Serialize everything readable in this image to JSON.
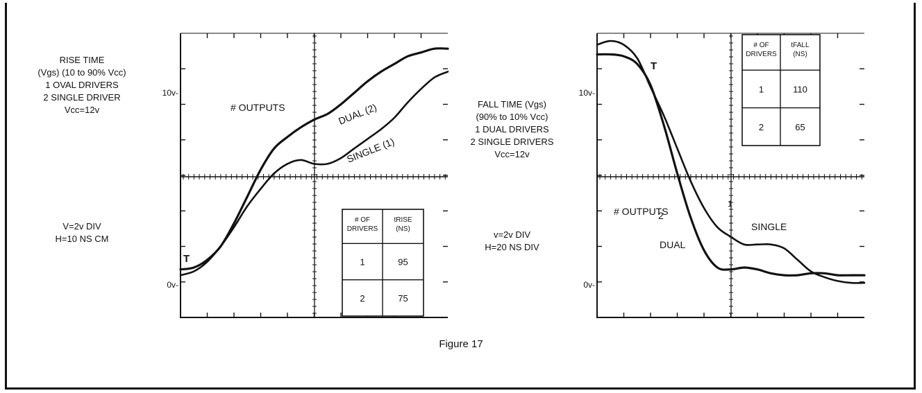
{
  "figure": {
    "caption": "Figure 17"
  },
  "chart_data": [
    {
      "type": "line",
      "title_lines": [
        "RISE TIME",
        "(Vgs) (10 to 90% Vcc)",
        "1  OVAL DRIVERS",
        "2  SINGLE DRIVER",
        "Vcc=12v"
      ],
      "scale_lines": [
        "V=2v DIV",
        "H=10 NS CM"
      ],
      "y_ticks": [
        {
          "label": "10v-",
          "value": 10
        },
        {
          "label": "0v-",
          "value": 0
        }
      ],
      "ylim": [
        -1.7,
        13.1
      ],
      "xlim": [
        0,
        100
      ],
      "inner_label": "# OUTPUTS",
      "start_marker": "T",
      "series": [
        {
          "name": "DUAL (2)",
          "label": "DUAL (2)",
          "x": [
            0,
            5,
            10,
            15,
            20,
            25,
            30,
            35,
            40,
            45,
            50,
            55,
            60,
            65,
            70,
            75,
            80,
            85,
            90,
            95,
            100
          ],
          "y": [
            0.8,
            0.9,
            1.3,
            2.0,
            3.2,
            4.6,
            6.0,
            7.1,
            7.7,
            8.2,
            8.6,
            8.9,
            9.4,
            10.0,
            10.6,
            11.1,
            11.5,
            11.9,
            12.1,
            12.3,
            12.3
          ]
        },
        {
          "name": "SINGLE (1)",
          "label": "SINGLE (1)",
          "x": [
            0,
            5,
            10,
            15,
            20,
            25,
            30,
            35,
            40,
            45,
            50,
            55,
            60,
            65,
            70,
            75,
            80,
            85,
            90,
            95,
            100
          ],
          "y": [
            0.5,
            0.7,
            1.2,
            2.0,
            3.0,
            4.1,
            5.0,
            5.8,
            6.3,
            6.5,
            6.3,
            6.3,
            6.6,
            7.1,
            7.6,
            8.1,
            8.7,
            9.5,
            10.2,
            10.8,
            11.1
          ]
        }
      ],
      "table": {
        "headers": [
          "# OF DRIVERS",
          "tRISE (NS)"
        ],
        "rows": [
          [
            "1",
            "95"
          ],
          [
            "2",
            "75"
          ]
        ]
      }
    },
    {
      "type": "line",
      "title_lines": [
        "FALL TIME (Vgs)",
        "(90% to 10% Vcc)",
        "1  DUAL DRIVERS",
        "2  SINGLE DRIVERS",
        "Vcc=12v"
      ],
      "scale_lines": [
        "v=2v DIV",
        "H=20 NS DIV"
      ],
      "y_ticks": [
        {
          "label": "10v-",
          "value": 10
        },
        {
          "label": "0v-",
          "value": 0
        }
      ],
      "ylim": [
        -1.7,
        13.1
      ],
      "xlim": [
        0,
        100
      ],
      "inner_label": "# OUTPUTS",
      "start_marker": "T",
      "series": [
        {
          "name": "DUAL",
          "label": "DUAL",
          "marker": "2",
          "x": [
            0,
            5,
            10,
            15,
            20,
            25,
            30,
            35,
            40,
            45,
            50,
            55,
            60,
            65,
            70,
            75,
            80,
            85,
            90,
            95,
            100
          ],
          "y": [
            12.0,
            12.0,
            11.9,
            11.5,
            10.4,
            8.3,
            5.8,
            3.5,
            1.8,
            0.9,
            0.8,
            0.9,
            0.8,
            0.6,
            0.5,
            0.5,
            0.6,
            0.6,
            0.5,
            0.5,
            0.5
          ]
        },
        {
          "name": "SINGLE",
          "label": "SINGLE",
          "marker": "1",
          "x": [
            0,
            5,
            10,
            15,
            20,
            25,
            30,
            35,
            40,
            45,
            50,
            55,
            60,
            65,
            70,
            75,
            80,
            85,
            90,
            95,
            100
          ],
          "y": [
            12.5,
            12.7,
            12.5,
            11.8,
            10.3,
            8.8,
            7.1,
            5.4,
            4.0,
            3.0,
            2.5,
            2.1,
            2.1,
            2.1,
            1.9,
            1.3,
            0.7,
            0.4,
            0.2,
            0.1,
            0.1
          ]
        }
      ],
      "table": {
        "headers": [
          "# OF DRIVERS",
          "tFALL (NS)"
        ],
        "rows": [
          [
            "1",
            "110"
          ],
          [
            "2",
            "65"
          ]
        ]
      }
    }
  ]
}
